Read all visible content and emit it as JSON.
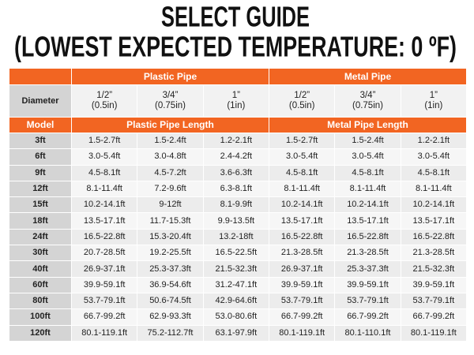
{
  "title": [
    "SELECT GUIDE",
    "(LOWEST EXPECTED TEMPERATURE: 0 ºF)"
  ],
  "table": {
    "groups": [
      "Plastic Pipe",
      "Metal Pipe"
    ],
    "diameter_label": "Diameter",
    "diameters": [
      [
        "1/2”",
        "(0.5in)"
      ],
      [
        "3/4”",
        "(0.75in)"
      ],
      [
        "1”",
        "(1in)"
      ],
      [
        "1/2”",
        "(0.5in)"
      ],
      [
        "3/4”",
        "(0.75in)"
      ],
      [
        "1”",
        "(1in)"
      ]
    ],
    "model_label": "Model",
    "length_headers": [
      "Plastic Pipe Length",
      "Metal Pipe Length"
    ],
    "rows": [
      [
        "3ft",
        "1.5-2.7ft",
        "1.5-2.4ft",
        "1.2-2.1ft",
        "1.5-2.7ft",
        "1.5-2.4ft",
        "1.2-2.1ft"
      ],
      [
        "6ft",
        "3.0-5.4ft",
        "3.0-4.8ft",
        "2.4-4.2ft",
        "3.0-5.4ft",
        "3.0-5.4ft",
        "3.0-5.4ft"
      ],
      [
        "9ft",
        "4.5-8.1ft",
        "4.5-7.2ft",
        "3.6-6.3ft",
        "4.5-8.1ft",
        "4.5-8.1ft",
        "4.5-8.1ft"
      ],
      [
        "12ft",
        "8.1-11.4ft",
        "7.2-9.6ft",
        "6.3-8.1ft",
        "8.1-11.4ft",
        "8.1-11.4ft",
        "8.1-11.4ft"
      ],
      [
        "15ft",
        "10.2-14.1ft",
        "9-12ft",
        "8.1-9.9ft",
        "10.2-14.1ft",
        "10.2-14.1ft",
        "10.2-14.1ft"
      ],
      [
        "18ft",
        "13.5-17.1ft",
        "11.7-15.3ft",
        "9.9-13.5ft",
        "13.5-17.1ft",
        "13.5-17.1ft",
        "13.5-17.1ft"
      ],
      [
        "24ft",
        "16.5-22.8ft",
        "15.3-20.4ft",
        "13.2-18ft",
        "16.5-22.8ft",
        "16.5-22.8ft",
        "16.5-22.8ft"
      ],
      [
        "30ft",
        "20.7-28.5ft",
        "19.2-25.5ft",
        "16.5-22.5ft",
        "21.3-28.5ft",
        "21.3-28.5ft",
        "21.3-28.5ft"
      ],
      [
        "40ft",
        "26.9-37.1ft",
        "25.3-37.3ft",
        "21.5-32.3ft",
        "26.9-37.1ft",
        "25.3-37.3ft",
        "21.5-32.3ft"
      ],
      [
        "60ft",
        "39.9-59.1ft",
        "36.9-54.6ft",
        "31.2-47.1ft",
        "39.9-59.1ft",
        "39.9-59.1ft",
        "39.9-59.1ft"
      ],
      [
        "80ft",
        "53.7-79.1ft",
        "50.6-74.5ft",
        "42.9-64.6ft",
        "53.7-79.1ft",
        "53.7-79.1ft",
        "53.7-79.1ft"
      ],
      [
        "100ft",
        "66.7-99.2ft",
        "62.9-93.3ft",
        "53.0-80.6ft",
        "66.7-99.2ft",
        "66.7-99.2ft",
        "66.7-99.2ft"
      ],
      [
        "120ft",
        "80.1-119.1ft",
        "75.2-112.7ft",
        "63.1-97.9ft",
        "80.1-119.1ft",
        "80.1-110.1ft",
        "80.1-119.1ft"
      ]
    ]
  }
}
